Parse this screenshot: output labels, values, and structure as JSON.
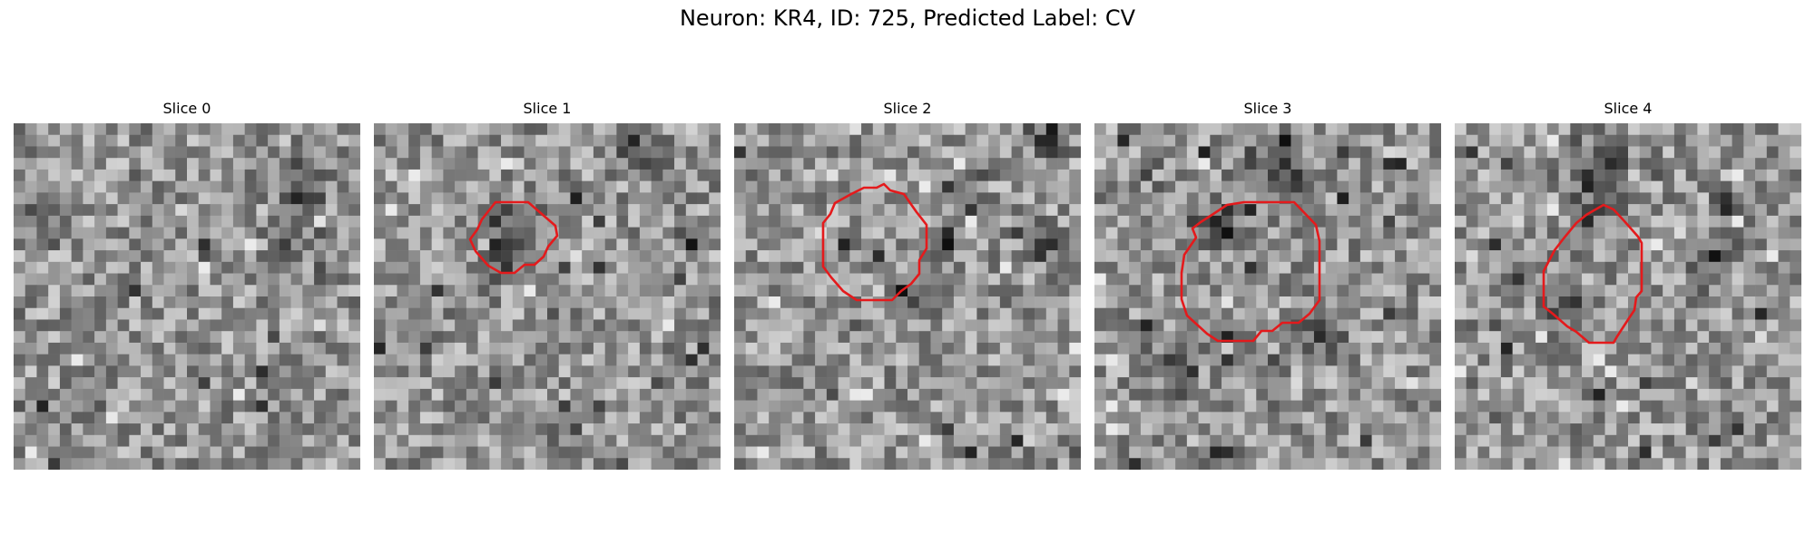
{
  "figure": {
    "title": "Neuron: KR4, ID: 725, Predicted Label: CV",
    "contour_color": "#e41a1c",
    "grid_size": 30,
    "colormap": "grayscale"
  },
  "slices": [
    {
      "label": "Slice 0",
      "has_contour": false
    },
    {
      "label": "Slice 1",
      "has_contour": true
    },
    {
      "label": "Slice 2",
      "has_contour": true
    },
    {
      "label": "Slice 3",
      "has_contour": true
    },
    {
      "label": "Slice 4",
      "has_contour": true
    }
  ]
}
